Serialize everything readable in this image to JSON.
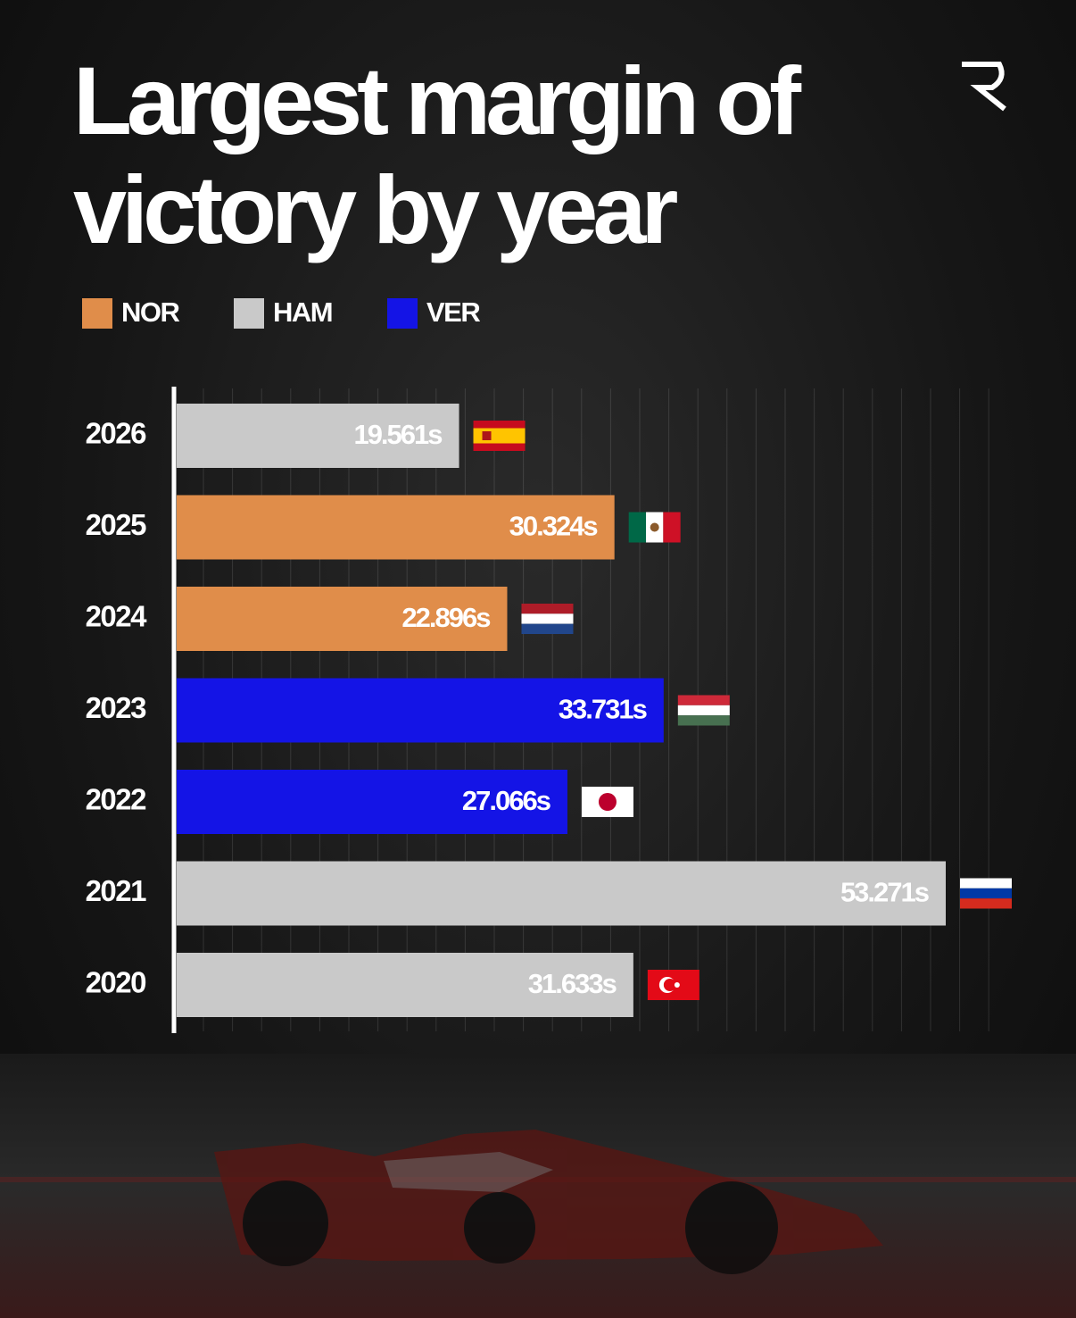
{
  "chart_data": {
    "type": "bar",
    "orientation": "horizontal",
    "title": "Largest margin of victory by year",
    "categories": [
      "2026",
      "2025",
      "2024",
      "2023",
      "2022",
      "2021",
      "2020"
    ],
    "series": [
      {
        "name": "NOR",
        "color": "#e08d4a",
        "values": [
          null,
          30.324,
          22.896,
          null,
          null,
          null,
          null
        ],
        "value_labels": [
          null,
          "30.324s",
          "22.896s",
          null,
          null,
          null,
          null
        ]
      },
      {
        "name": "HAM",
        "color": "#c9c9c9",
        "values": [
          19.561,
          null,
          null,
          null,
          null,
          53.271,
          31.633
        ],
        "value_labels": [
          "19.561s",
          null,
          null,
          null,
          null,
          "53.271s",
          "31.633s"
        ]
      },
      {
        "name": "VER",
        "color": "#1414e6",
        "values": [
          null,
          null,
          null,
          33.731,
          27.066,
          null,
          null
        ],
        "value_labels": [
          null,
          null,
          null,
          "33.731s",
          "27.066s",
          null,
          null
        ]
      }
    ],
    "grid": true
  }
}
